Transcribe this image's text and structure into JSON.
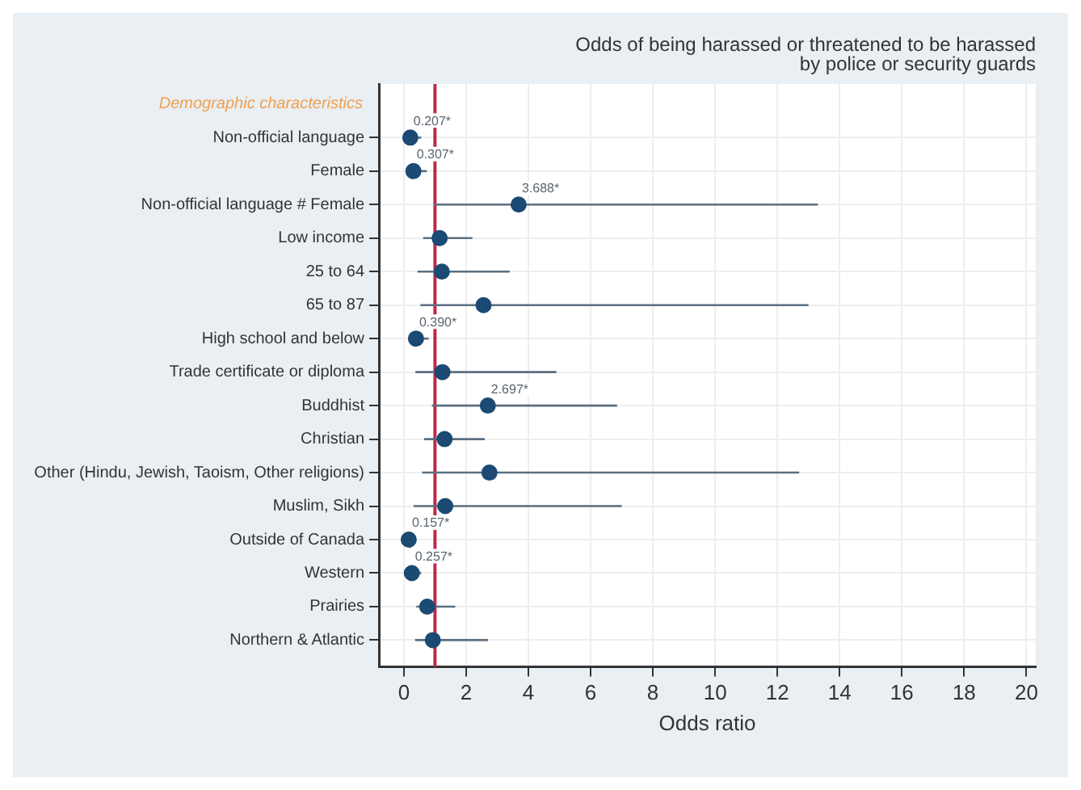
{
  "chart_data": {
    "type": "scatter",
    "orientation": "horizontal",
    "title": "Odds of being harassed or threatened to be harassed by police or security guards",
    "xlabel": "Odds ratio",
    "categories": [
      "Non-official language",
      "Female",
      "Non-official language # Female",
      "Low income",
      "25 to 64",
      "65 to 87",
      "High school and below",
      "Trade certificate or diploma",
      "Buddhist",
      "Christian",
      "Other (Hindu, Jewish, Taoism, Other religions)",
      "Muslim, Sikh",
      "Outside of Canada",
      "Western",
      "Prairies",
      "Northern & Atlantic"
    ],
    "series": [
      {
        "color": "#1b4a73",
        "values": [
          0.207,
          0.307,
          3.688,
          1.15,
          1.22,
          2.56,
          0.39,
          1.24,
          2.697,
          1.31,
          2.75,
          1.33,
          0.157,
          0.257,
          0.75,
          0.93
        ],
        "errors": [
          [
            0.1,
            0.56
          ],
          [
            0.12,
            0.74
          ],
          [
            0.97,
            13.3
          ],
          [
            0.62,
            2.2
          ],
          [
            0.44,
            3.4
          ],
          [
            0.53,
            13.0
          ],
          [
            0.15,
            0.8
          ],
          [
            0.37,
            4.9
          ],
          [
            0.9,
            6.85
          ],
          [
            0.65,
            2.6
          ],
          [
            0.59,
            12.7
          ],
          [
            0.31,
            7.0
          ],
          [
            0.05,
            0.3
          ],
          [
            0.1,
            0.56
          ],
          [
            0.4,
            1.65
          ],
          [
            0.36,
            2.7
          ]
        ],
        "value_labels": [
          "0.207*",
          "0.307*",
          "3.688*",
          null,
          null,
          null,
          "0.390*",
          null,
          "2.697*",
          null,
          null,
          null,
          "0.157*",
          "0.257*",
          null,
          null
        ]
      }
    ],
    "xlim": [
      -0.8,
      20.3
    ],
    "xticks": [
      0,
      2,
      4,
      6,
      8,
      10,
      12,
      14,
      16,
      18,
      20
    ],
    "ref_lines": [
      {
        "axis": "x",
        "value": 1,
        "color": "#c0284a"
      }
    ],
    "annotations": [
      "Demographic characteristics"
    ],
    "grid": true,
    "marker": "circle",
    "legend": false
  }
}
